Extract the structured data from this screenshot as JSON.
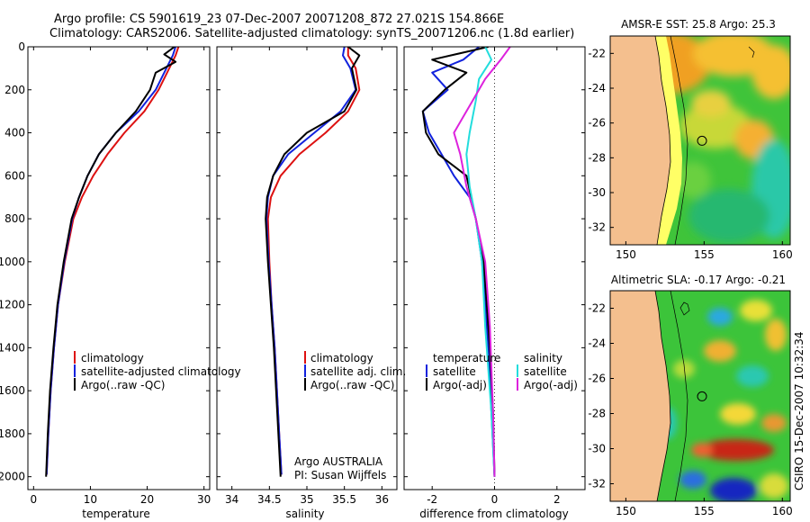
{
  "header": {
    "title_line1": "Argo profile: CS 5901619_23 07-Dec-2007 20071208_872 27.021S 154.866E",
    "title_line2": "Climatology: CARS2006. Satellite-adjusted climatology: synTS_20071206.nc (1.8d earlier)"
  },
  "footer": {
    "credit": "CSIRO 15-Dec-2007 10:32:34"
  },
  "colors": {
    "red": "#dd1111",
    "blue": "#1122dd",
    "black": "#000000",
    "cyan": "#22dddd",
    "magenta": "#dd22dd"
  },
  "chart_data": [
    {
      "type": "line",
      "id": "temperature",
      "xlabel": "temperature",
      "xlim": [
        -1,
        31
      ],
      "ylim": [
        2060,
        0
      ],
      "yticks": [
        0,
        200,
        400,
        600,
        800,
        1000,
        1200,
        1400,
        1600,
        1800,
        2000
      ],
      "ytick_labels": [
        "0",
        "200",
        "400",
        "600",
        "800",
        "1000",
        "1200",
        "1400",
        "1600",
        "1800",
        "2000"
      ],
      "xticks": [
        0,
        10,
        20,
        30
      ],
      "xtick_labels": [
        "0",
        "10",
        "20",
        "30"
      ],
      "legend": [
        {
          "label": "climatology",
          "color": "#dd1111"
        },
        {
          "label": "satellite-adjusted climatology",
          "color": "#1122dd"
        },
        {
          "label": "Argo(..raw -QC)",
          "color": "#000000"
        }
      ],
      "series": [
        {
          "name": "climatology",
          "color": "#dd1111",
          "x": [
            25.5,
            25.0,
            23.5,
            22.0,
            19.5,
            16.0,
            13.0,
            10.5,
            8.5,
            7.0,
            5.5,
            4.3,
            3.6,
            3.0,
            2.6,
            2.3
          ],
          "depth": [
            0,
            40,
            120,
            200,
            300,
            400,
            500,
            600,
            700,
            800,
            1000,
            1200,
            1400,
            1600,
            1800,
            1990
          ]
        },
        {
          "name": "satellite-adjusted climatology",
          "color": "#1122dd",
          "x": [
            25.0,
            24.5,
            23.0,
            21.5,
            18.5,
            14.5,
            11.5,
            9.5,
            8.0,
            6.8,
            5.4,
            4.3,
            3.6,
            3.0,
            2.6,
            2.3
          ],
          "depth": [
            0,
            40,
            120,
            200,
            300,
            400,
            500,
            600,
            700,
            800,
            1000,
            1200,
            1400,
            1600,
            1800,
            1990
          ]
        },
        {
          "name": "Argo(..raw -QC)",
          "color": "#000000",
          "x": [
            24.8,
            23.0,
            25.0,
            21.5,
            20.5,
            18.0,
            14.5,
            11.5,
            9.5,
            8.0,
            6.7,
            5.3,
            4.2,
            3.5,
            2.9,
            2.5,
            2.2
          ],
          "depth": [
            0,
            35,
            70,
            120,
            200,
            300,
            400,
            500,
            600,
            700,
            800,
            1000,
            1200,
            1400,
            1600,
            1800,
            2000
          ]
        }
      ]
    },
    {
      "type": "line",
      "id": "salinity",
      "xlabel": "salinity",
      "xlim": [
        33.8,
        36.2
      ],
      "ylim": [
        2060,
        0
      ],
      "xticks": [
        34,
        34.5,
        35,
        35.5,
        36
      ],
      "xtick_labels": [
        "34",
        "34.5",
        "35",
        "35.5",
        "36"
      ],
      "legend": [
        {
          "label": "climatology",
          "color": "#dd1111"
        },
        {
          "label": "satellite adj. clim.",
          "color": "#1122dd"
        },
        {
          "label": "Argo(..raw -QC)",
          "color": "#000000"
        }
      ],
      "annotation_line1": "Argo AUSTRALIA",
      "annotation_line2": "PI: Susan Wijffels",
      "series": [
        {
          "name": "climatology",
          "color": "#dd1111",
          "x": [
            35.55,
            35.55,
            35.65,
            35.7,
            35.55,
            35.25,
            34.9,
            34.65,
            34.52,
            34.48,
            34.5,
            34.53,
            34.57,
            34.6,
            34.63,
            34.66
          ],
          "depth": [
            0,
            40,
            100,
            200,
            300,
            400,
            500,
            600,
            700,
            800,
            1000,
            1200,
            1400,
            1600,
            1800,
            1990
          ]
        },
        {
          "name": "satellite adj. clim.",
          "color": "#1122dd",
          "x": [
            35.5,
            35.48,
            35.58,
            35.65,
            35.45,
            35.1,
            34.75,
            34.55,
            34.48,
            34.46,
            34.49,
            34.53,
            34.57,
            34.6,
            34.63,
            34.66
          ],
          "depth": [
            0,
            40,
            100,
            200,
            300,
            400,
            500,
            600,
            700,
            800,
            1000,
            1200,
            1400,
            1600,
            1800,
            1990
          ]
        },
        {
          "name": "Argo(..raw -QC)",
          "color": "#000000",
          "x": [
            35.55,
            35.7,
            35.6,
            35.66,
            35.5,
            35.0,
            34.7,
            34.55,
            34.47,
            34.45,
            34.48,
            34.52,
            34.56,
            34.59,
            34.62,
            34.65
          ],
          "depth": [
            0,
            40,
            100,
            200,
            300,
            400,
            500,
            600,
            700,
            800,
            1000,
            1200,
            1400,
            1600,
            1800,
            2000
          ]
        }
      ]
    },
    {
      "type": "line",
      "id": "difference",
      "xlabel": "difference from climatology",
      "xlim": [
        -2.9,
        2.9
      ],
      "ylim": [
        2060,
        0
      ],
      "xticks": [
        -2,
        0,
        2
      ],
      "xtick_labels": [
        "-2",
        "0",
        "2"
      ],
      "legend": [
        {
          "label": "temperature",
          "color": "none"
        },
        {
          "label": "satellite",
          "color": "#1122dd"
        },
        {
          "label": "Argo(-adj)",
          "color": "#000000"
        },
        {
          "label": "salinity",
          "color": "none"
        },
        {
          "label": "satellite",
          "color": "#22dddd"
        },
        {
          "label": "Argo(-adj)",
          "color": "#dd22dd"
        }
      ],
      "series": [
        {
          "name": "temperature satellite",
          "color": "#1122dd",
          "x": [
            -0.5,
            -1.0,
            -2.0,
            -1.5,
            -2.3,
            -2.1,
            -1.7,
            -1.3,
            -0.8,
            -0.6,
            -0.4,
            -0.2,
            -0.1,
            0.0
          ],
          "depth": [
            0,
            60,
            120,
            200,
            300,
            400,
            500,
            600,
            700,
            800,
            1000,
            1400,
            1700,
            2000
          ]
        },
        {
          "name": "temperature Argo(-adj)",
          "color": "#000000",
          "x": [
            -0.2,
            -2.0,
            -0.9,
            -1.6,
            -2.3,
            -2.2,
            -1.8,
            -0.9,
            -0.75,
            -0.6,
            -0.35,
            -0.15,
            -0.05,
            0.0
          ],
          "depth": [
            0,
            60,
            120,
            200,
            300,
            400,
            500,
            600,
            700,
            800,
            1000,
            1400,
            1700,
            2000
          ]
        },
        {
          "name": "salinity satellite",
          "color": "#22dddd",
          "x": [
            -0.3,
            -0.1,
            -0.5,
            -0.6,
            -0.8,
            -0.9,
            -0.8,
            -0.6,
            -0.4,
            -0.3,
            -0.1,
            0.0
          ],
          "depth": [
            0,
            60,
            150,
            250,
            400,
            500,
            650,
            800,
            1000,
            1300,
            1700,
            2000
          ]
        },
        {
          "name": "salinity Argo(-adj)",
          "color": "#dd22dd",
          "x": [
            0.5,
            0.2,
            -0.3,
            -0.7,
            -1.3,
            -1.1,
            -0.9,
            -0.6,
            -0.3,
            -0.15,
            -0.05,
            0.0
          ],
          "depth": [
            0,
            60,
            150,
            250,
            400,
            500,
            650,
            800,
            1000,
            1300,
            1700,
            2000
          ]
        }
      ]
    },
    {
      "type": "heatmap",
      "id": "sst-map",
      "title": "AMSR-E SST: 25.8 Argo: 25.3",
      "xlim": [
        149,
        160.5
      ],
      "ylim": [
        -33,
        -21
      ],
      "xticks": [
        150,
        155,
        160
      ],
      "xtick_labels": [
        "150",
        "155",
        "160"
      ],
      "yticks": [
        -22,
        -24,
        -26,
        -28,
        -30,
        -32
      ],
      "ytick_labels": [
        "-22",
        "-24",
        "-26",
        "-28",
        "-30",
        "-32"
      ],
      "float_position": {
        "lon": 154.866,
        "lat": -27.021
      }
    },
    {
      "type": "heatmap",
      "id": "sla-map",
      "title": "Altimetric SLA: -0.17 Argo: -0.21",
      "xlim": [
        149,
        160.5
      ],
      "ylim": [
        -33,
        -21
      ],
      "xticks": [
        150,
        155,
        160
      ],
      "xtick_labels": [
        "150",
        "155",
        "160"
      ],
      "yticks": [
        -22,
        -24,
        -26,
        -28,
        -30,
        -32
      ],
      "ytick_labels": [
        "-22",
        "-24",
        "-26",
        "-28",
        "-30",
        "-32"
      ],
      "float_position": {
        "lon": 154.866,
        "lat": -27.021
      }
    }
  ]
}
